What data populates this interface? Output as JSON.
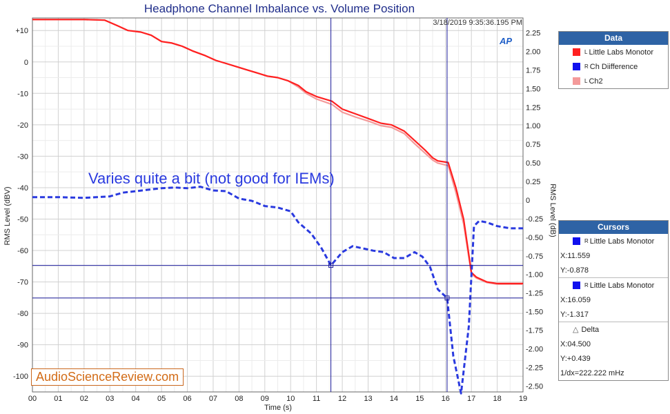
{
  "title": "Headphone Channel Imbalance vs. Volume Position",
  "timestamp": "3/18/2019 9:35:36.195 PM",
  "logo": "AP",
  "annotation": "Varies quite a bit (not good for IEMs)",
  "watermark": "AudioScienceReview.com",
  "legend": {
    "header": "Data",
    "items": [
      {
        "sup": "L",
        "label": "Little Labs Monotor",
        "color": "#ff2020"
      },
      {
        "sup": "R",
        "label": "Ch Diifference",
        "color": "#1010ee"
      },
      {
        "sup": "L",
        "label": "Ch2",
        "color": "#f49a9a"
      }
    ]
  },
  "cursors": {
    "header": "Cursors",
    "c1": {
      "sup": "R",
      "name": "Little Labs Monotor",
      "x": "X:11.559",
      "y": "Y:-0.878"
    },
    "c2": {
      "sup": "R",
      "name": "Little Labs Monotor",
      "x": "X:16.059",
      "y": "Y:-1.317"
    },
    "delta": {
      "label": "Delta",
      "x": "X:04.500",
      "y": "Y:+0.439",
      "f": "1/dx=222.222 mHz"
    }
  },
  "chart_data": {
    "type": "line",
    "title": "Headphone Channel Imbalance vs. Volume Position",
    "xlabel": "Time (s)",
    "ylabel": "RMS Level (dBV)",
    "y2label": "RMS Level (dB)",
    "xlim": [
      0,
      19
    ],
    "ylim": [
      -105,
      14
    ],
    "y2lim": [
      -2.58,
      2.45
    ],
    "x_ticks": [
      "00",
      "01",
      "02",
      "03",
      "04",
      "05",
      "06",
      "07",
      "08",
      "09",
      "10",
      "11",
      "12",
      "13",
      "14",
      "15",
      "16",
      "17",
      "18",
      "19"
    ],
    "y_ticks": [
      10,
      0,
      -10,
      -20,
      -30,
      -40,
      -50,
      -60,
      -70,
      -80,
      -90,
      -100
    ],
    "y_tick_labels": [
      "+10",
      "0",
      "-10",
      "-20",
      "-30",
      "-40",
      "-50",
      "-60",
      "-70",
      "-80",
      "-90",
      "-100"
    ],
    "y2_ticks": [
      2.25,
      2.0,
      1.75,
      1.5,
      1.25,
      1.0,
      0.75,
      0.5,
      0.25,
      0,
      -0.25,
      -0.5,
      -0.75,
      -1.0,
      -1.25,
      -1.5,
      -1.75,
      -2.0,
      -2.25,
      -2.5
    ],
    "y2_tick_labels": [
      "2.25",
      "2.00",
      "1.75",
      "1.50",
      "1.25",
      "1.00",
      "0.75",
      "0.50",
      "0.25",
      "0",
      "-0.25",
      "-0.50",
      "-0.75",
      "-1.00",
      "-1.25",
      "-1.50",
      "-1.75",
      "-2.00",
      "-2.25",
      "-2.50"
    ],
    "cursor_x": [
      11.559,
      16.059
    ],
    "cursor_y": [
      -0.878,
      -1.317
    ],
    "grid": true,
    "series": [
      {
        "name": "Little Labs Monotor",
        "axis": "left",
        "color": "#ff2020",
        "x": [
          0,
          1,
          2,
          2.8,
          3.3,
          3.7,
          4.2,
          4.6,
          5.0,
          5.4,
          5.8,
          6.2,
          6.7,
          7.1,
          7.5,
          7.9,
          8.3,
          8.7,
          9.1,
          9.5,
          9.9,
          10.3,
          10.6,
          11.0,
          11.6,
          12.0,
          12.5,
          13.0,
          13.5,
          13.9,
          14.4,
          14.8,
          15.2,
          15.5,
          15.7,
          16.1,
          16.4,
          16.7,
          17.0,
          17.2,
          17.6,
          18.0,
          18.5,
          19.0
        ],
        "y": [
          13.5,
          13.5,
          13.5,
          13.3,
          11.5,
          10.0,
          9.5,
          8.5,
          6.5,
          6.0,
          5.0,
          3.5,
          2.0,
          0.5,
          -0.5,
          -1.5,
          -2.5,
          -3.5,
          -4.5,
          -5.0,
          -6.0,
          -7.5,
          -9.5,
          -11.0,
          -12.5,
          -15.0,
          -16.5,
          -18.0,
          -19.5,
          -20.0,
          -22.0,
          -25.0,
          -28.0,
          -30.5,
          -31.5,
          -32.0,
          -40.0,
          -50.0,
          -67.0,
          -68.5,
          -70.0,
          -70.5,
          -70.5,
          -70.5
        ]
      },
      {
        "name": "Ch Diifference",
        "axis": "right",
        "color": "#2a3adf",
        "dashed": true,
        "x": [
          0,
          1,
          2,
          3.0,
          3.5,
          4.0,
          4.5,
          5.0,
          5.5,
          6.0,
          6.5,
          7.0,
          7.5,
          8.0,
          8.5,
          9.0,
          9.5,
          10.0,
          10.3,
          10.8,
          11.2,
          11.56,
          12.0,
          12.4,
          12.8,
          13.2,
          13.6,
          14.0,
          14.4,
          14.8,
          15.1,
          15.4,
          15.7,
          16.06,
          16.3,
          16.6,
          16.9,
          17.1,
          17.3,
          17.6,
          18.0,
          18.5,
          19.0
        ],
        "y": [
          0.04,
          0.04,
          0.03,
          0.05,
          0.1,
          0.12,
          0.14,
          0.16,
          0.17,
          0.16,
          0.18,
          0.13,
          0.12,
          0.02,
          -0.01,
          -0.08,
          -0.1,
          -0.15,
          -0.3,
          -0.45,
          -0.65,
          -0.878,
          -0.7,
          -0.62,
          -0.65,
          -0.68,
          -0.7,
          -0.78,
          -0.78,
          -0.7,
          -0.76,
          -0.9,
          -1.2,
          -1.317,
          -2.1,
          -2.6,
          -1.7,
          -0.35,
          -0.28,
          -0.3,
          -0.35,
          -0.38,
          -0.38
        ]
      },
      {
        "name": "Ch2",
        "axis": "left",
        "color": "#f49a9a",
        "x": [
          0,
          1,
          2,
          2.8,
          3.3,
          3.7,
          4.2,
          4.6,
          5.0,
          5.4,
          5.8,
          6.2,
          6.7,
          7.1,
          7.5,
          7.9,
          8.3,
          8.7,
          9.1,
          9.5,
          9.9,
          10.3,
          10.6,
          11.0,
          11.6,
          12.0,
          12.5,
          13.0,
          13.5,
          13.9,
          14.4,
          14.8,
          15.2,
          15.5,
          15.7,
          16.1,
          16.4,
          16.7,
          17.0,
          17.2,
          17.6,
          18.0,
          18.5,
          19.0
        ],
        "y": [
          13.5,
          13.5,
          13.5,
          13.3,
          11.5,
          10.0,
          9.5,
          8.5,
          6.5,
          6.0,
          5.0,
          3.5,
          2.0,
          0.5,
          -0.5,
          -1.5,
          -2.5,
          -3.5,
          -4.5,
          -5.0,
          -6.0,
          -8.0,
          -10.0,
          -11.8,
          -13.5,
          -16.0,
          -17.5,
          -18.8,
          -20.3,
          -20.8,
          -22.8,
          -26.0,
          -29.0,
          -31.2,
          -32.2,
          -33.0,
          -41.5,
          -51.5,
          -67.5,
          -68.8,
          -70.2,
          -70.7,
          -70.7,
          -70.7
        ]
      }
    ]
  }
}
